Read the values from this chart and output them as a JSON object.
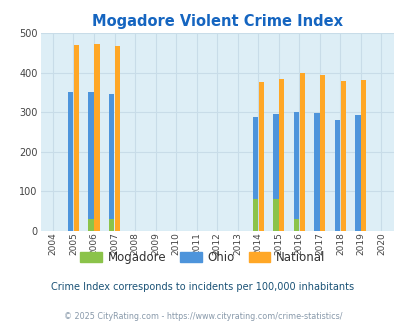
{
  "title": "Mogadore Violent Crime Index",
  "subtitle": "Crime Index corresponds to incidents per 100,000 inhabitants",
  "footer": "© 2025 CityRating.com - https://www.cityrating.com/crime-statistics/",
  "years": [
    2004,
    2005,
    2006,
    2007,
    2008,
    2009,
    2010,
    2011,
    2012,
    2013,
    2014,
    2015,
    2016,
    2017,
    2018,
    2019,
    2020
  ],
  "mogadore": [
    null,
    null,
    30,
    30,
    null,
    null,
    null,
    null,
    null,
    null,
    82,
    82,
    30,
    null,
    null,
    null,
    null
  ],
  "ohio": [
    null,
    352,
    352,
    347,
    null,
    null,
    null,
    null,
    null,
    null,
    289,
    295,
    301,
    299,
    281,
    294,
    null
  ],
  "national": [
    null,
    469,
    473,
    467,
    null,
    null,
    null,
    null,
    null,
    null,
    376,
    383,
    398,
    394,
    380,
    381,
    null
  ],
  "bar_width": 0.28,
  "ylim": [
    0,
    500
  ],
  "yticks": [
    0,
    100,
    200,
    300,
    400,
    500
  ],
  "color_mogadore": "#8bc34a",
  "color_ohio": "#4d94db",
  "color_national": "#ffa726",
  "bg_color": "#ddeef6",
  "grid_color": "#c8dce8",
  "title_color": "#1565c0",
  "subtitle_color": "#1a5276",
  "footer_color": "#8899aa"
}
